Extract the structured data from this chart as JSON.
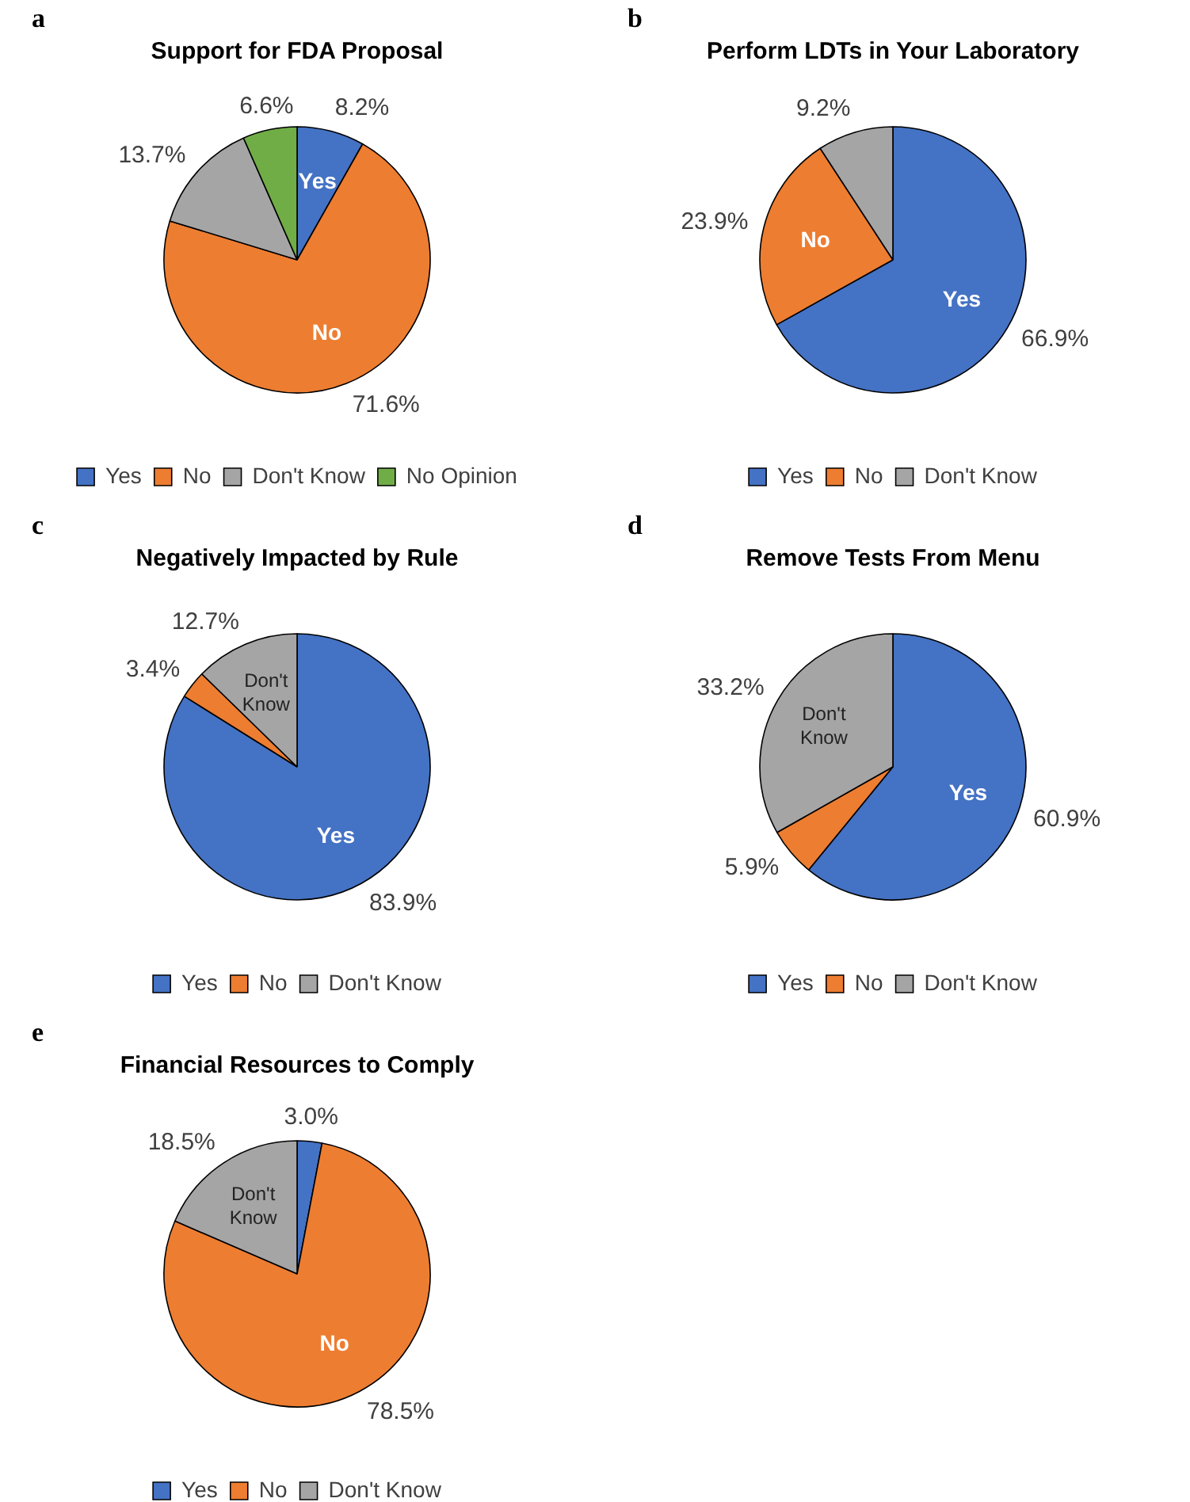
{
  "chart_data": [
    {
      "type": "pie",
      "title": "Support for FDA Proposal",
      "categories": [
        "Yes",
        "No",
        "Don't Know",
        "No Opinion"
      ],
      "values": [
        8.2,
        71.6,
        13.7,
        6.6
      ],
      "colors": [
        "#4472c4",
        "#ed7d31",
        "#a5a5a5",
        "#70ad47"
      ],
      "value_labels": [
        "8.2%",
        "71.6%",
        "13.7%",
        "6.6%"
      ],
      "legend": "bottom",
      "annotations": [
        "a",
        {
          "text": "Yes",
          "x": "Yes"
        },
        {
          "text": "No",
          "x": "No"
        }
      ]
    },
    {
      "type": "pie",
      "title": "Perform LDTs in Your Laboratory",
      "categories": [
        "Yes",
        "No",
        "Don't Know"
      ],
      "values": [
        66.9,
        23.9,
        9.2
      ],
      "colors": [
        "#4472c4",
        "#ed7d31",
        "#a5a5a5"
      ],
      "value_labels": [
        "66.9%",
        "23.9%",
        "9.2%"
      ],
      "legend": "bottom",
      "annotations": [
        "b",
        {
          "text": "Yes",
          "x": "Yes"
        },
        {
          "text": "No",
          "x": "No"
        }
      ]
    },
    {
      "type": "pie",
      "title": "Negatively Impacted by Rule",
      "categories": [
        "Yes",
        "No",
        "Don't Know"
      ],
      "values": [
        83.9,
        3.4,
        12.7
      ],
      "colors": [
        "#4472c4",
        "#ed7d31",
        "#a5a5a5"
      ],
      "value_labels": [
        "83.9%",
        "3.4%",
        "12.7%"
      ],
      "legend": "bottom",
      "annotations": [
        "c",
        {
          "text": "Yes",
          "x": "Yes"
        },
        {
          "text": "Don't Know",
          "x": "Don't Know"
        }
      ]
    },
    {
      "type": "pie",
      "title": "Remove Tests From Menu",
      "categories": [
        "Yes",
        "No",
        "Don't Know"
      ],
      "values": [
        60.9,
        5.9,
        33.2
      ],
      "colors": [
        "#4472c4",
        "#ed7d31",
        "#a5a5a5"
      ],
      "value_labels": [
        "60.9%",
        "5.9%",
        "33.2%"
      ],
      "legend": "bottom",
      "annotations": [
        "d",
        {
          "text": "Yes",
          "x": "Yes"
        },
        {
          "text": "Don't Know",
          "x": "Don't Know"
        }
      ]
    },
    {
      "type": "pie",
      "title": "Financial Resources to Comply",
      "categories": [
        "Yes",
        "No",
        "Don't Know"
      ],
      "values": [
        3.0,
        78.5,
        18.5
      ],
      "colors": [
        "#4472c4",
        "#ed7d31",
        "#a5a5a5"
      ],
      "value_labels": [
        "3.0%",
        "78.5%",
        "18.5%"
      ],
      "legend": "bottom",
      "annotations": [
        "e",
        {
          "text": "No",
          "x": "No"
        },
        {
          "text": "Don't Know",
          "x": "Don't Know"
        }
      ]
    }
  ]
}
